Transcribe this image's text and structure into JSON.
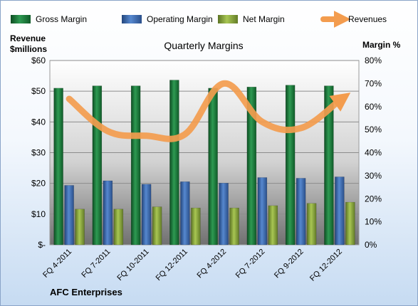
{
  "chart_data": {
    "type": "bar",
    "title": "Quarterly Margins",
    "left_axis_label_line1": "Revenue",
    "left_axis_label_line2": "$millions",
    "right_axis_label": "Margin %",
    "footer": "AFC Enterprises",
    "categories": [
      "FQ 4-2011",
      "FQ 7-2011",
      "FQ 10-2011",
      "FQ 12-2011",
      "FQ 4-2012",
      "FQ 7-2012",
      "FQ 9-2012",
      "FQ 12-2012"
    ],
    "left_ticks": [
      "$-",
      "$10",
      "$20",
      "$30",
      "$40",
      "$50",
      "$60"
    ],
    "right_ticks": [
      "0%",
      "10%",
      "20%",
      "30%",
      "40%",
      "50%",
      "60%",
      "70%",
      "80%"
    ],
    "ylim_left": [
      0,
      60
    ],
    "ylim_right": [
      0,
      80
    ],
    "legend_position": "top",
    "series": [
      {
        "name": "Gross Margin",
        "axis": "right",
        "kind": "bar",
        "color": "#1e7a3c",
        "values": [
          68.0,
          69.0,
          69.0,
          71.5,
          68.0,
          68.5,
          69.3,
          69.0
        ]
      },
      {
        "name": "Operating Margin",
        "axis": "right",
        "kind": "bar",
        "color": "#3d6bb0",
        "values": [
          25.8,
          27.8,
          26.3,
          27.4,
          26.8,
          29.2,
          28.9,
          29.5
        ]
      },
      {
        "name": "Net Margin",
        "axis": "right",
        "kind": "bar",
        "color": "#8aaa3c",
        "values": [
          15.5,
          15.5,
          16.5,
          16.0,
          16.0,
          17.0,
          18.0,
          18.5
        ]
      },
      {
        "name": "Revenues",
        "axis": "left",
        "kind": "line",
        "color": "#f39c4e",
        "values": [
          47.5,
          37.0,
          35.5,
          36.0,
          52.5,
          40.0,
          38.0,
          47.0
        ]
      }
    ]
  }
}
